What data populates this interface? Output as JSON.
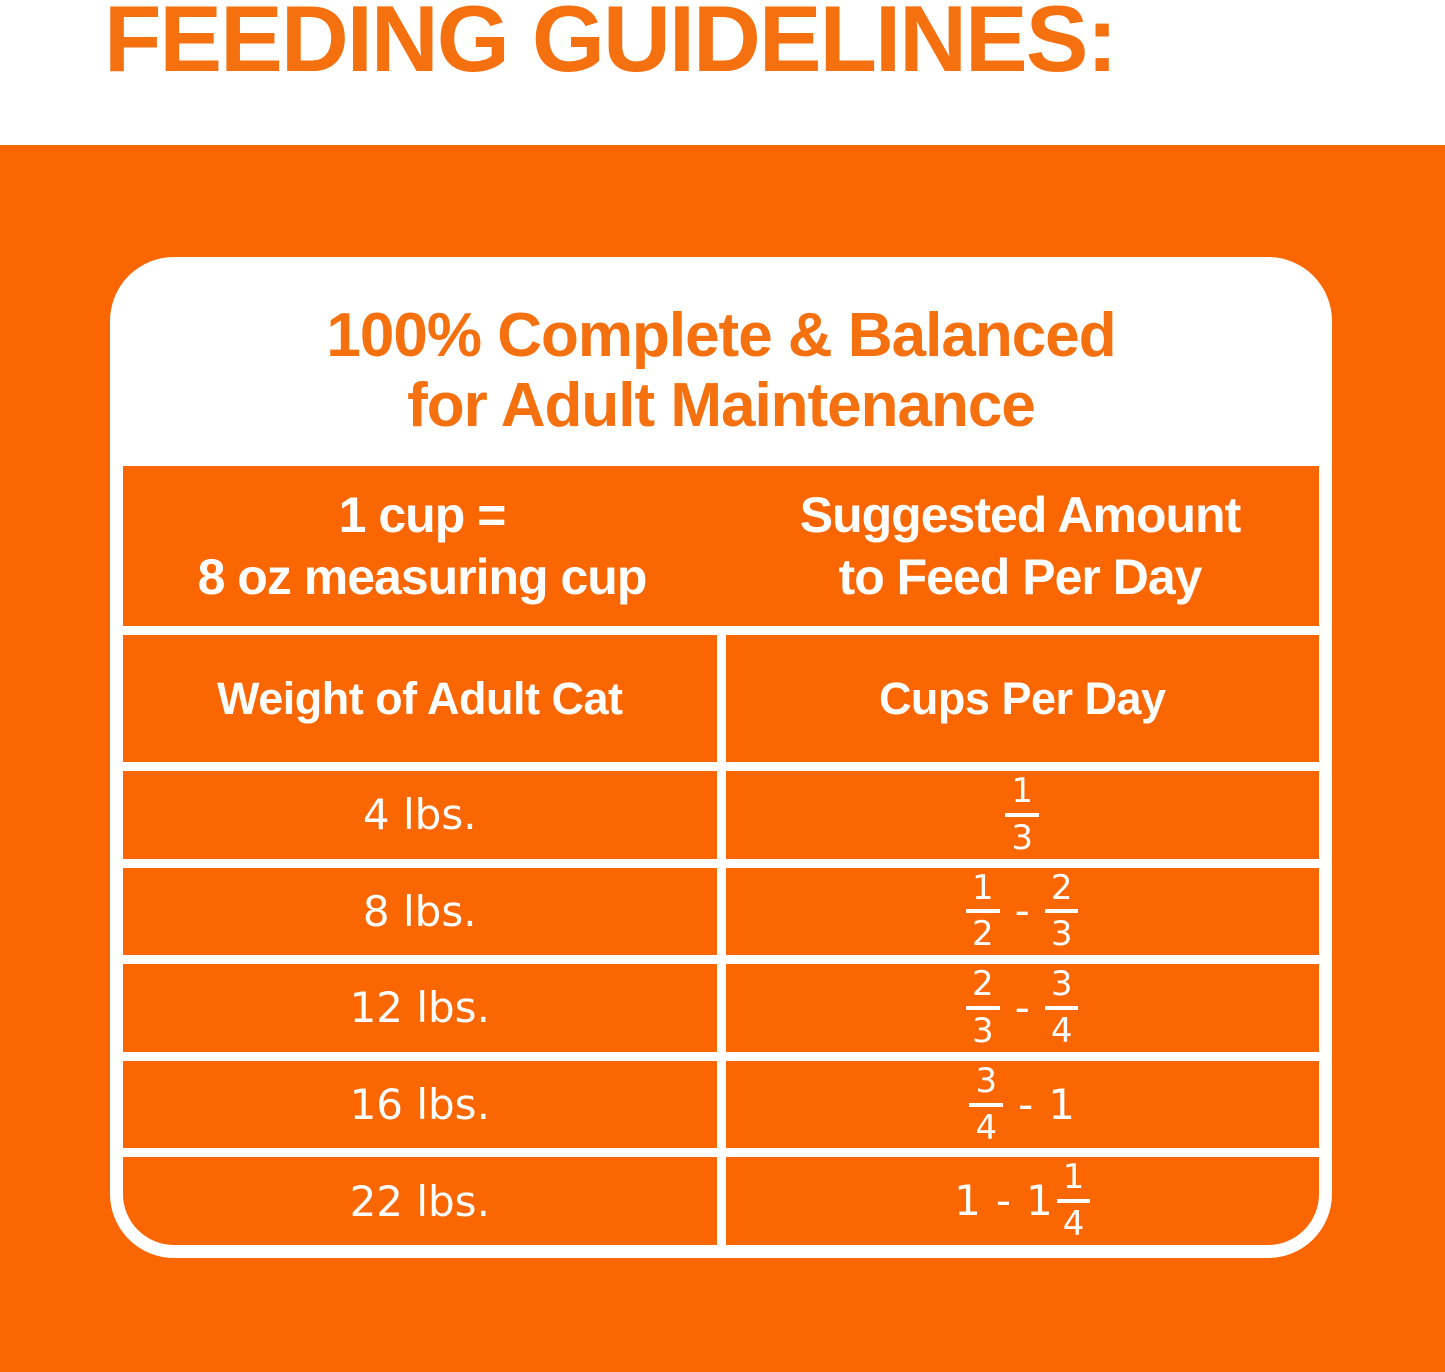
{
  "page_title": "FEEDING GUIDELINES:",
  "card": {
    "heading_line1": "100% Complete & Balanced",
    "heading_line2": "for Adult Maintenance",
    "info_header": {
      "left_line1": "1 cup =",
      "left_line2": "8 oz measuring cup",
      "right_line1": "Suggested Amount",
      "right_line2": "to Feed Per Day"
    },
    "column_headers": {
      "weight": "Weight of Adult Cat",
      "cups": "Cups Per Day"
    },
    "rows": [
      {
        "weight": "4 lbs.",
        "cups": [
          {
            "frac": [
              "1",
              "3"
            ]
          }
        ]
      },
      {
        "weight": "8 lbs.",
        "cups": [
          {
            "frac": [
              "1",
              "2"
            ]
          },
          {
            "text": "-"
          },
          {
            "frac": [
              "2",
              "3"
            ]
          }
        ]
      },
      {
        "weight": "12 lbs.",
        "cups": [
          {
            "frac": [
              "2",
              "3"
            ]
          },
          {
            "text": "-"
          },
          {
            "frac": [
              "3",
              "4"
            ]
          }
        ]
      },
      {
        "weight": "16 lbs.",
        "cups": [
          {
            "frac": [
              "3",
              "4"
            ]
          },
          {
            "text": "-"
          },
          {
            "text": "1"
          }
        ]
      },
      {
        "weight": "22 lbs.",
        "cups": [
          {
            "text": "1"
          },
          {
            "text": "-"
          },
          {
            "text": "1"
          },
          {
            "frac": [
              "1",
              "4"
            ],
            "tight": true
          }
        ]
      }
    ]
  },
  "colors": {
    "panel_orange": "#F96602",
    "heading_text_orange": "#F5700F",
    "cell_text_white": "#FFFFFF"
  }
}
